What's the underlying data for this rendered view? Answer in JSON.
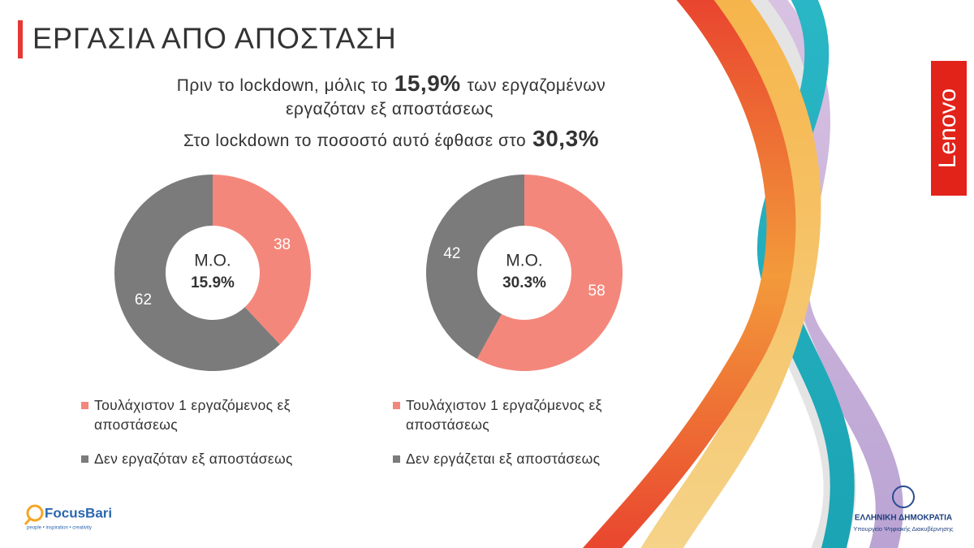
{
  "slide": {
    "title": "ΕΡΓΑΣΙΑ ΑΠΟ ΑΠΟΣΤΑΣΗ",
    "headline": {
      "line1_before": "Πριν το lockdown, μόλις το",
      "line1_highlight": "15,9%",
      "line1_after": "των εργαζομένων",
      "line2": "εργαζόταν εξ αποστάσεως",
      "line3_before": "Στο lockdown το ποσοστό αυτό έφθασε στο",
      "line3_highlight": "30,3%"
    }
  },
  "logos": {
    "lenovo": "Lenovo",
    "focusbari": "FocusBari",
    "focusbari_tagline": "people • inspiration • creativity",
    "gov": "ΕΛΛΗΝΙΚΗ ΔΗΜΟΚΡΑΤΙΑ",
    "gov_sub": "Υπουργείο Ψηφιακής Διακυβέρνησης"
  },
  "chart_data": [
    {
      "type": "donut",
      "center_label": "Μ.Ο.",
      "center_value": "15.9%",
      "categories": [
        "Τουλάχιστον 1 εργαζόμενος εξ αποστάσεως",
        "Δεν εργαζόταν εξ αποστάσεως"
      ],
      "values": [
        38,
        62
      ],
      "colors": [
        "#f4877b",
        "#7b7b7b"
      ]
    },
    {
      "type": "donut",
      "center_label": "Μ.Ο.",
      "center_value": "30.3%",
      "categories": [
        "Τουλάχιστον 1 εργαζόμενος εξ αποστάσεως",
        "Δεν εργάζεται εξ αποστάσεως"
      ],
      "values": [
        58,
        42
      ],
      "colors": [
        "#f4877b",
        "#7b7b7b"
      ]
    }
  ]
}
